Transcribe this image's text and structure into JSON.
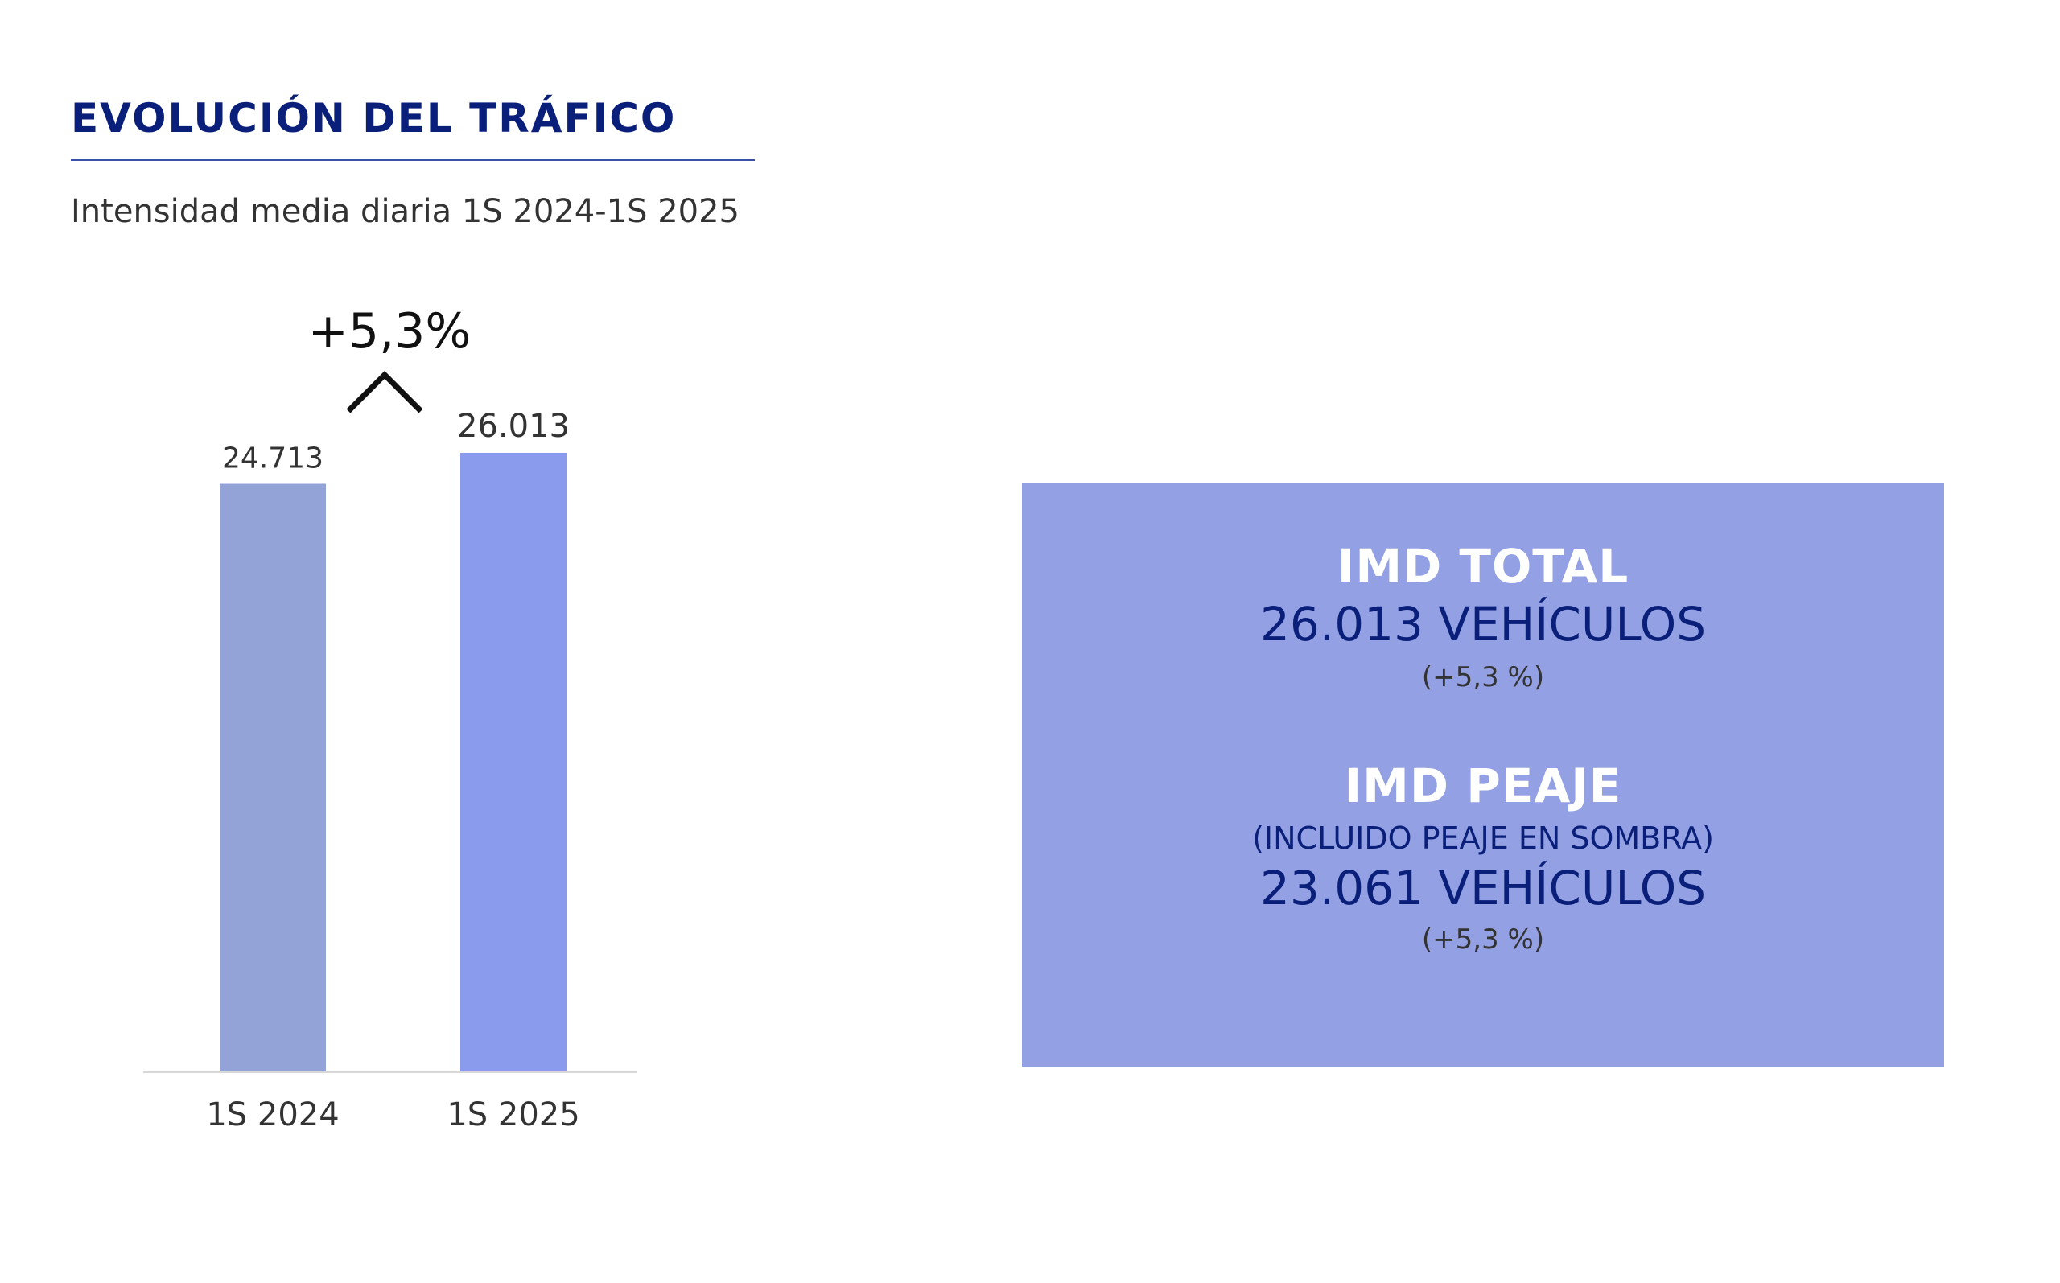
{
  "header": {
    "title": "EVOLUCIÓN DEL TRÁFICO",
    "subtitle": "Intensidad media diaria 1S 2024-1S 2025"
  },
  "chart_data": {
    "type": "bar",
    "categories": [
      "1S 2024",
      "1S 2025"
    ],
    "values": [
      24713,
      26013
    ],
    "value_labels": [
      "24.713",
      "26.013"
    ],
    "ylim": [
      0,
      26013
    ],
    "annotation": "+5,3%",
    "colors": [
      "#93a3d8",
      "#8a9aec"
    ],
    "grid": false
  },
  "summary": {
    "total": {
      "heading": "IMD TOTAL",
      "value": "26.013 VEHÍCULOS",
      "change": "(+5,3 %)"
    },
    "peaje": {
      "heading": "IMD PEAJE",
      "note": "(INCLUIDO PEAJE EN SOMBRA)",
      "value": "23.061 VEHÍCULOS",
      "change": "(+5,3 %)"
    },
    "box_color": "#93a0e3"
  }
}
